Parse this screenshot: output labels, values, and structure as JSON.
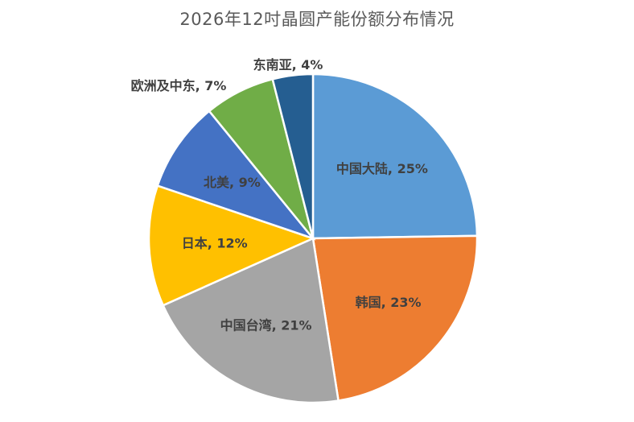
{
  "chart_data": {
    "type": "pie",
    "title": "2026年12吋晶圆产能份额分布情况",
    "start_angle_deg": 0,
    "direction": "clockwise",
    "slices": [
      {
        "name": "中国大陆",
        "value": 25,
        "label": "中国大陆, 25%",
        "color": "#5B9BD5",
        "label_position": "inside"
      },
      {
        "name": "韩国",
        "value": 23,
        "label": "韩国, 23%",
        "color": "#ED7D31",
        "label_position": "inside"
      },
      {
        "name": "中国台湾",
        "value": 21,
        "label": "中国台湾, 21%",
        "color": "#A5A5A5",
        "label_position": "inside"
      },
      {
        "name": "日本",
        "value": 12,
        "label": "日本, 12%",
        "color": "#FFC000",
        "label_position": "inside"
      },
      {
        "name": "北美",
        "value": 9,
        "label": "北美, 9%",
        "color": "#4472C4",
        "label_position": "inside"
      },
      {
        "name": "欧洲及中东",
        "value": 7,
        "label": "欧洲及中东, 7%",
        "color": "#70AD47",
        "label_position": "outside"
      },
      {
        "name": "东南亚",
        "value": 4,
        "label": "东南亚, 4%",
        "color": "#255E91",
        "label_position": "outside"
      }
    ]
  }
}
